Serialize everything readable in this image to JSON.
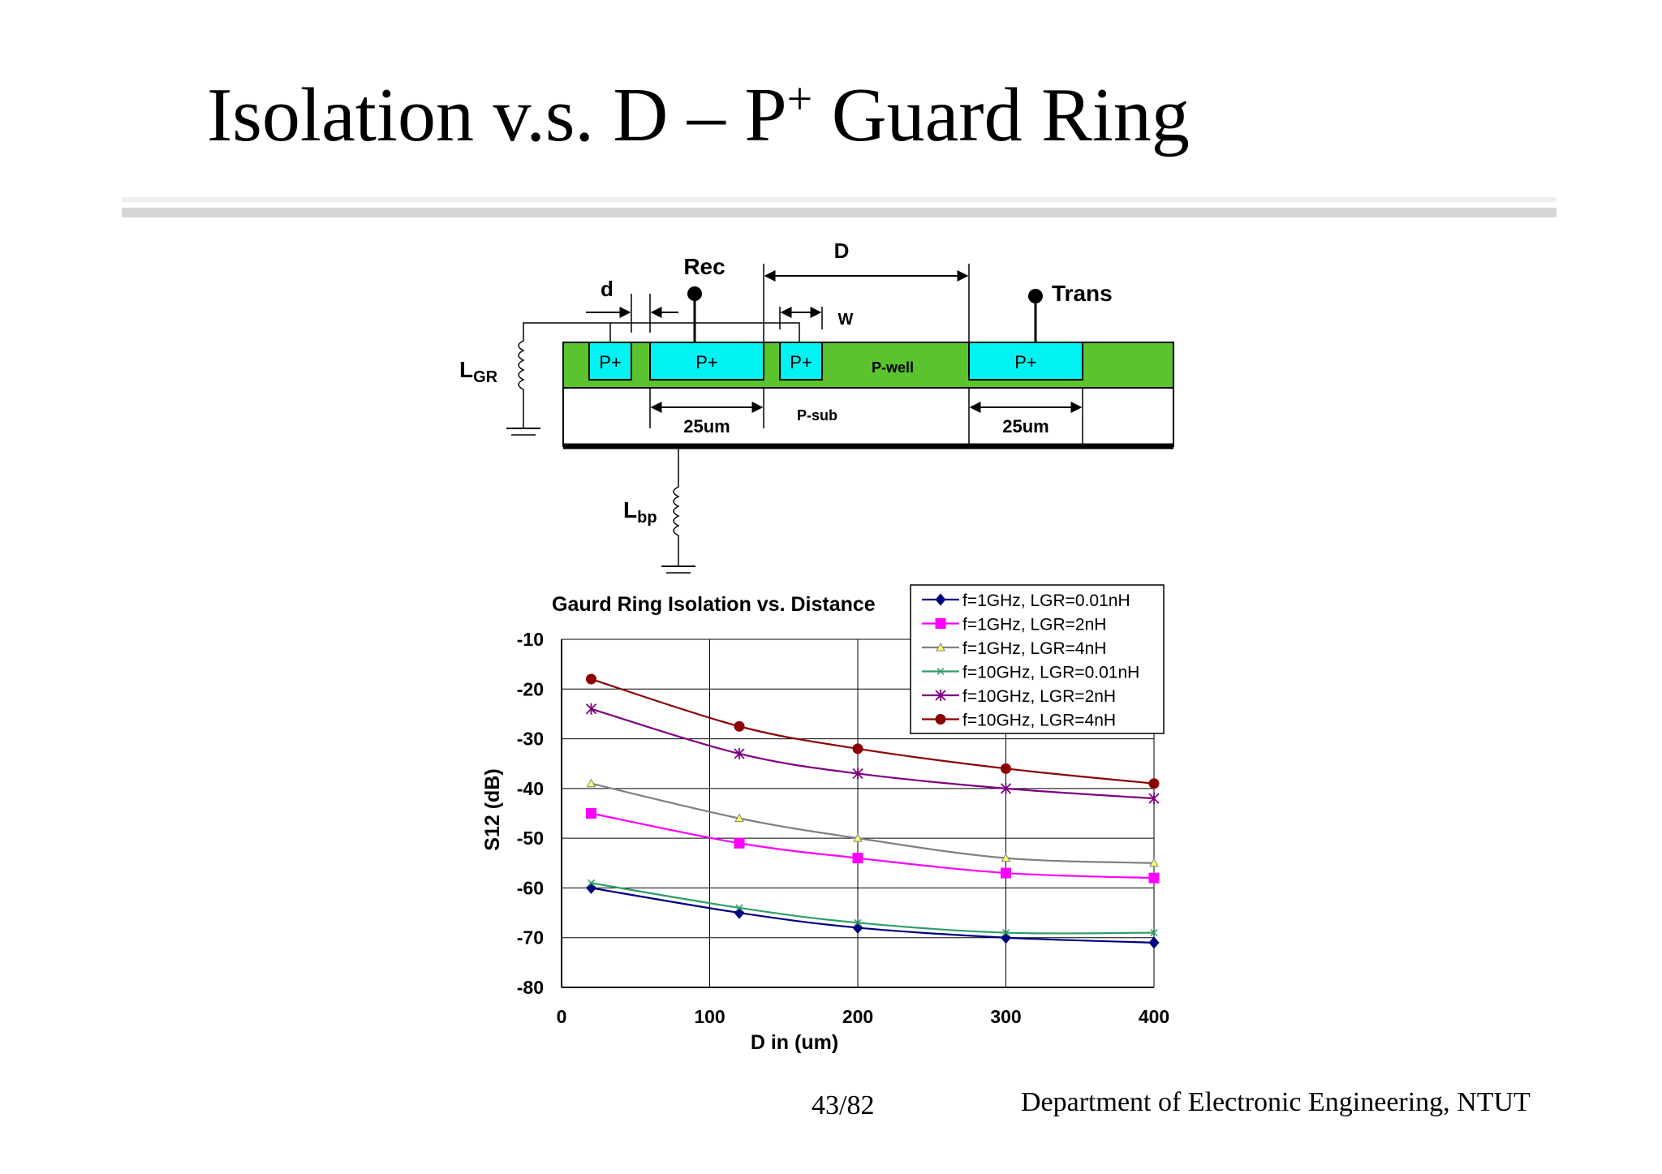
{
  "slide": {
    "title_main": "Isolation v.s. D – P",
    "title_sup": "+",
    "title_end": " Guard Ring",
    "page": "43/82",
    "department": "Department of Electronic Engineering, NTUT"
  },
  "diagram": {
    "label_D": "D",
    "label_d": "d",
    "label_Rec": "Rec",
    "label_Trans": "Trans",
    "label_W": "W",
    "label_LGR_main": "L",
    "label_LGR_sub": "GR",
    "label_Lbp_main": "L",
    "label_Lbp_sub": "bp",
    "pplus_label": "P+",
    "pwell_label": "P-well",
    "psub_label": "P-sub",
    "width_left": "25um",
    "width_right": "25um",
    "colors": {
      "pwell": "#5ac32d",
      "pplus": "#00f3f3"
    }
  },
  "chart_data": {
    "type": "line",
    "title": "Gaurd Ring Isolation vs. Distance",
    "xlabel": "D in (um)",
    "ylabel": "S12 (dB)",
    "xlim": [
      0,
      400
    ],
    "ylim": [
      -80,
      -10
    ],
    "xticks": [
      "0",
      "100",
      "200",
      "300",
      "400"
    ],
    "yticks": [
      "-10",
      "-20",
      "-30",
      "-40",
      "-50",
      "-60",
      "-70",
      "-80"
    ],
    "grid": true,
    "legend_position": "top-right",
    "x": [
      20,
      120,
      200,
      300,
      400
    ],
    "series": [
      {
        "name": "f=1GHz, LGR=0.01nH",
        "values": [
          -60,
          -65,
          -68,
          -70,
          -71
        ],
        "color": "#000080",
        "marker": "diamond"
      },
      {
        "name": "f=1GHz, LGR=2nH",
        "values": [
          -45,
          -51,
          -54,
          -57,
          -58
        ],
        "color": "#ff00ff",
        "marker": "square"
      },
      {
        "name": "f=1GHz, LGR=4nH",
        "values": [
          -39,
          -46,
          -50,
          -54,
          -55
        ],
        "color": "#808080",
        "marker": "triangle"
      },
      {
        "name": "f=10GHz, LGR=0.01nH",
        "values": [
          -59,
          -64,
          -67,
          -69,
          -69
        ],
        "color": "#2e9e6a",
        "marker": "x"
      },
      {
        "name": "f=10GHz, LGR=2nH",
        "values": [
          -24,
          -33,
          -37,
          -40,
          -42
        ],
        "color": "#800080",
        "marker": "star"
      },
      {
        "name": "f=10GHz, LGR=4nH",
        "values": [
          -18,
          -27.5,
          -32,
          -36,
          -39
        ],
        "color": "#8b0000",
        "marker": "circle"
      }
    ]
  }
}
